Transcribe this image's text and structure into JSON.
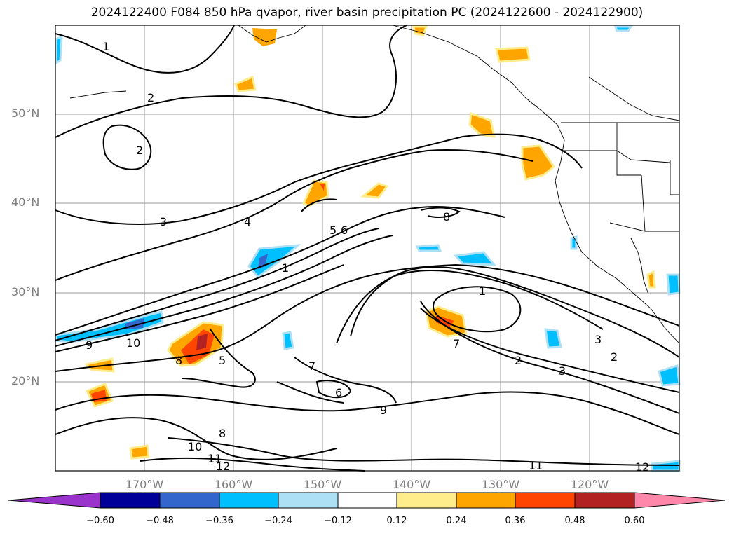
{
  "title": "2024122400 F084 850 hPa qvapor, river basin precipitation PC (2024122600 - 2024122900)",
  "lat_labels": [
    "50°N",
    "40°N",
    "30°N",
    "20°N"
  ],
  "lon_labels": [
    "170°W",
    "160°W",
    "150°W",
    "140°W",
    "130°W",
    "120°W"
  ],
  "contour_labels": [
    "1",
    "2",
    "2",
    "3",
    "4",
    "5",
    "6",
    "7",
    "8",
    "8",
    "9",
    "10",
    "11",
    "12",
    "1",
    "2",
    "3",
    "5",
    "6",
    "7",
    "8",
    "9",
    "10",
    "11",
    "12",
    "3",
    "2",
    "1"
  ],
  "colorbar": {
    "colors": [
      "#9933cc",
      "#000099",
      "#3366cc",
      "#00bfff",
      "#aee0f5",
      "#ffffff",
      "#ffec8b",
      "#ffa500",
      "#ff4500",
      "#b22222",
      "#ff88aa"
    ],
    "ticks": [
      "−0.60",
      "−0.48",
      "−0.36",
      "−0.24",
      "−0.12",
      "0.12",
      "0.24",
      "0.36",
      "0.48",
      "0.60"
    ]
  }
}
